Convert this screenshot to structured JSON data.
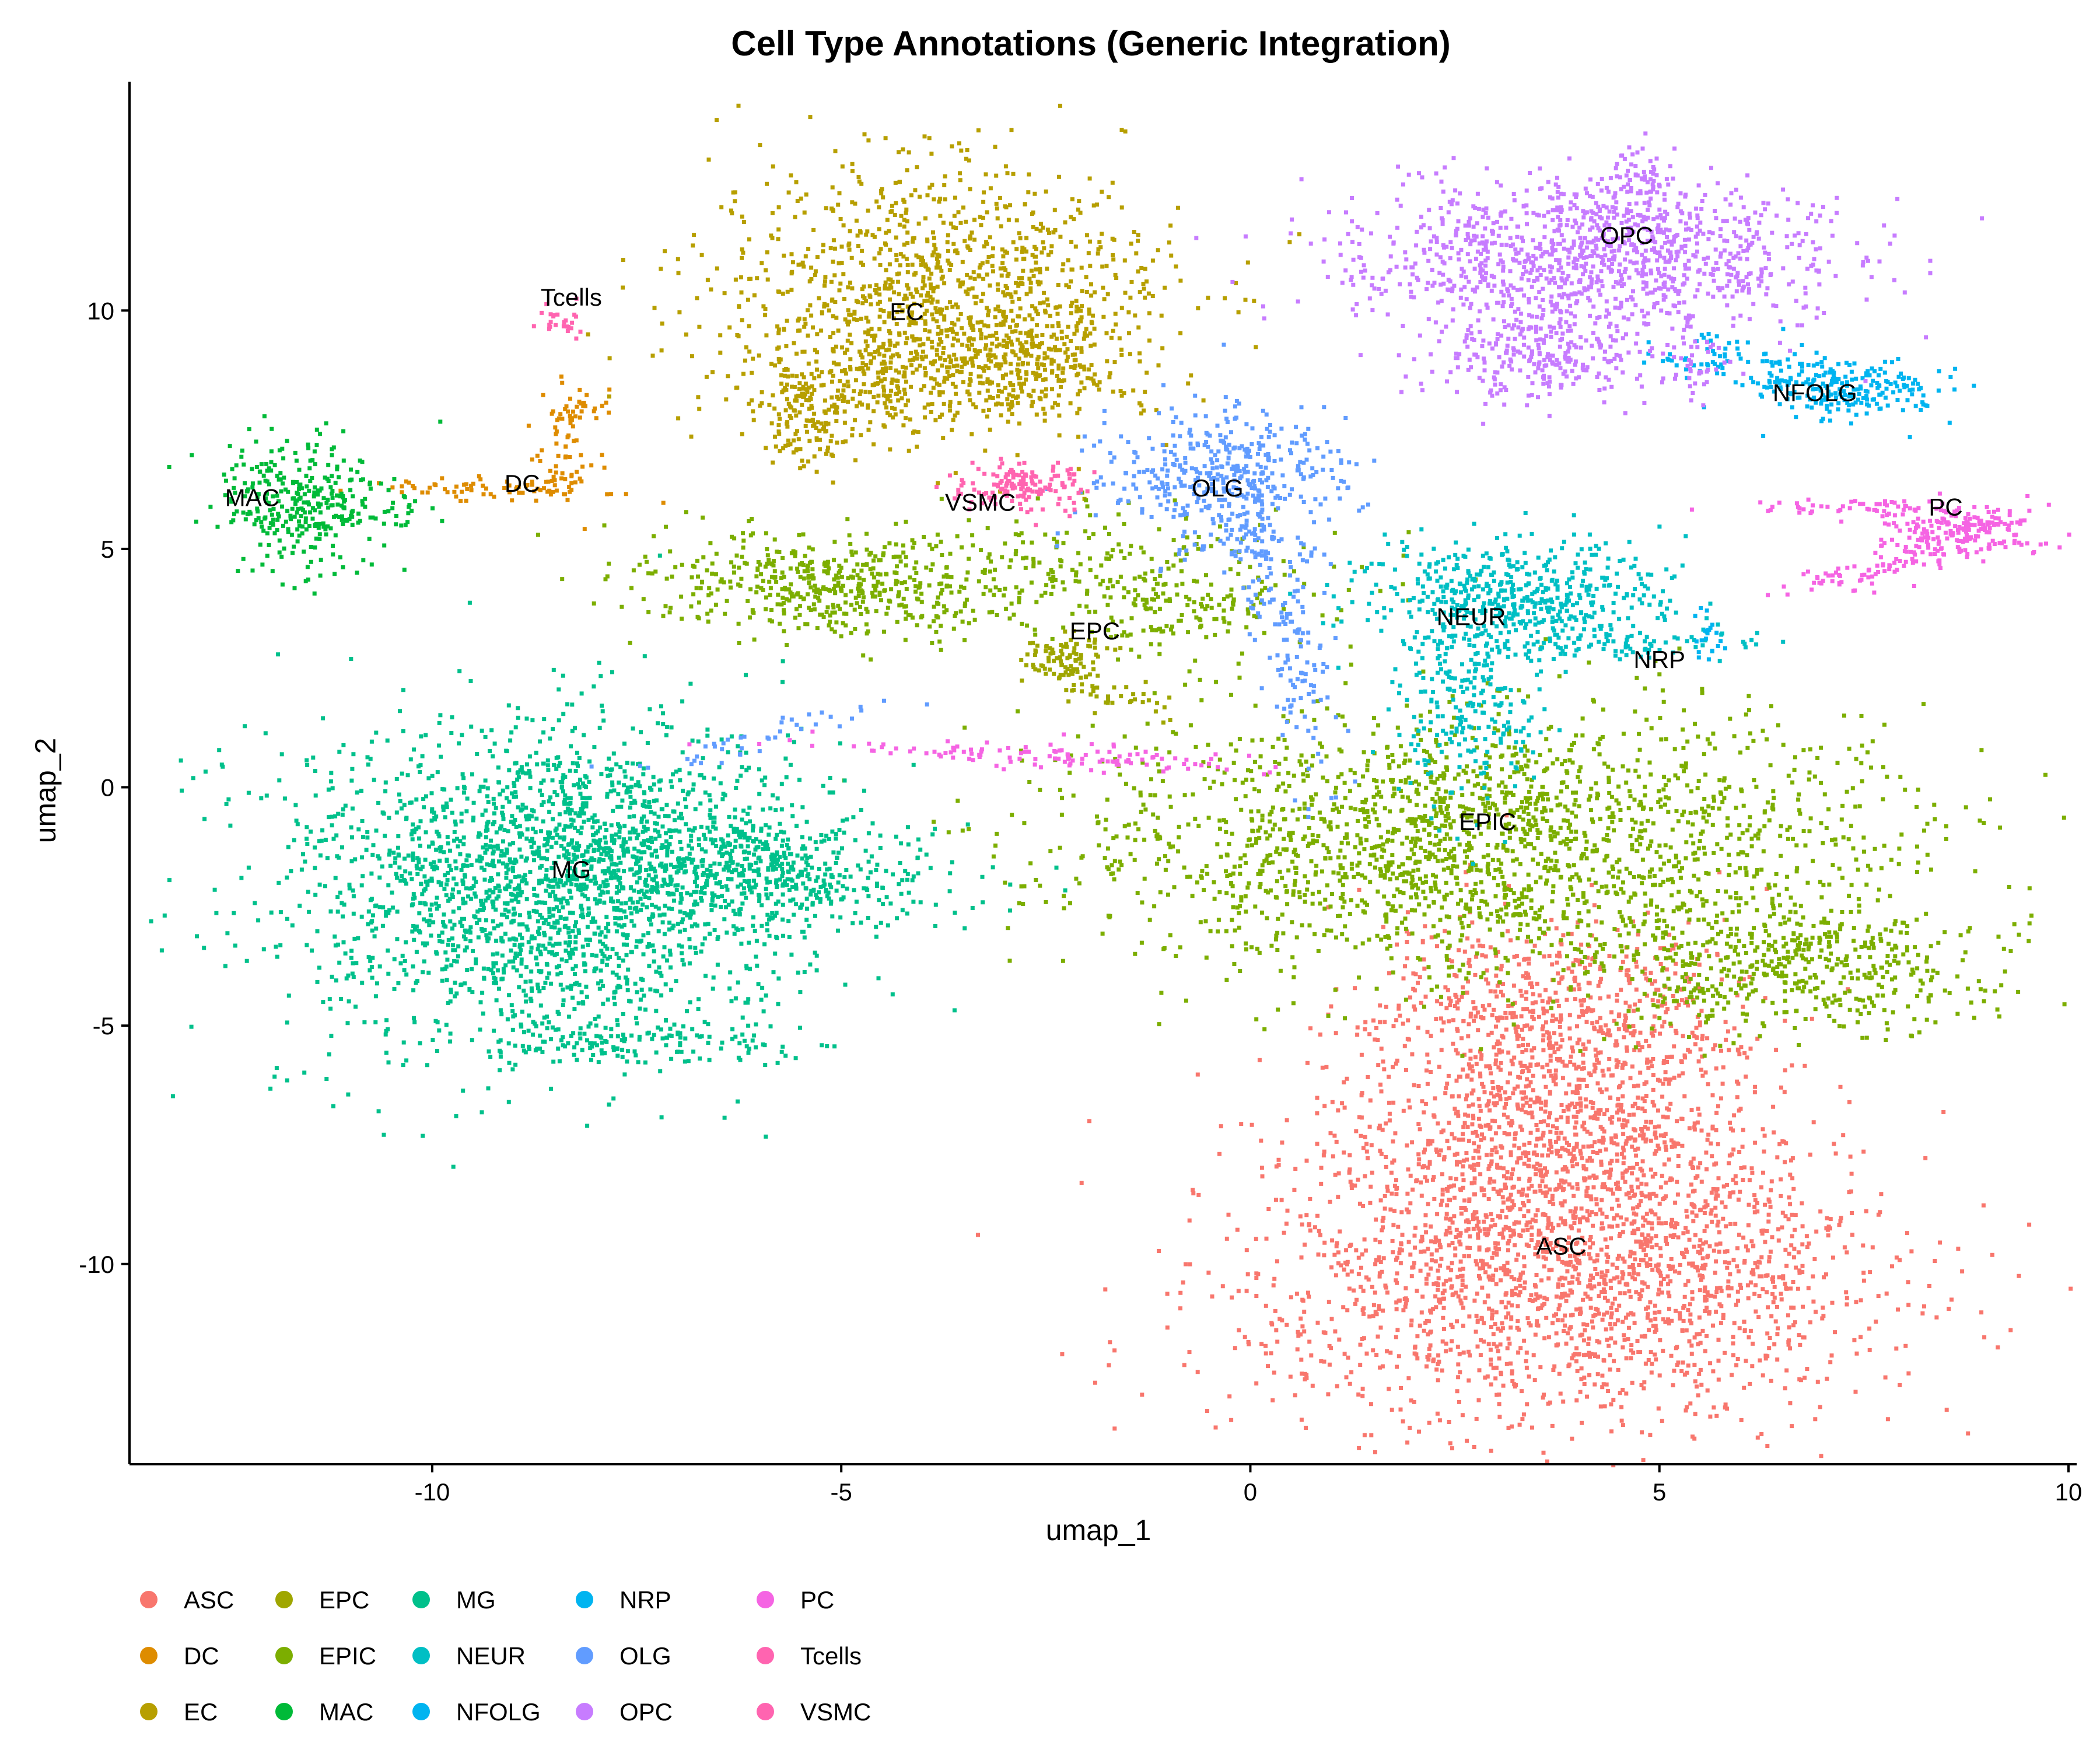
{
  "chart_data": {
    "type": "scatter",
    "title": "Cell Type Annotations (Generic Integration)",
    "xlabel": "umap_1",
    "ylabel": "umap_2",
    "xlim": [
      -13.7,
      10.1
    ],
    "ylim": [
      -14.2,
      14.8
    ],
    "xticks": [
      -10,
      -5,
      0,
      5,
      10
    ],
    "yticks": [
      -10,
      -5,
      0,
      5,
      10
    ],
    "grid": false,
    "legend_position": "bottom",
    "series": [
      {
        "name": "ASC",
        "color": "#F8766D",
        "label_pos": [
          3.8,
          -9.8
        ],
        "blobs": [
          [
            3.6,
            -10.4,
            2.0,
            1.5,
            0,
            1600
          ],
          [
            4.4,
            -7.2,
            1.1,
            2.0,
            0.4,
            900
          ],
          [
            3.0,
            -7.5,
            1.2,
            1.3,
            0,
            500
          ],
          [
            3.8,
            -4.5,
            1.2,
            0.9,
            0,
            400
          ]
        ]
      },
      {
        "name": "DC",
        "color": "#DE8C00",
        "label_pos": [
          -8.9,
          6.2
        ],
        "blobs": [
          [
            -9.3,
            6.3,
            0.7,
            0.12,
            0,
            70
          ],
          [
            -8.4,
            7.0,
            0.2,
            0.6,
            0,
            60
          ],
          [
            -8.2,
            8.0,
            0.2,
            0.2,
            0,
            25
          ]
        ]
      },
      {
        "name": "EC",
        "color": "#B79F00",
        "label_pos": [
          -4.2,
          9.8
        ],
        "blobs": [
          [
            -3.9,
            10.3,
            1.4,
            1.4,
            0,
            1100
          ],
          [
            -2.8,
            9.0,
            0.7,
            0.6,
            0,
            250
          ],
          [
            -5.4,
            7.7,
            0.3,
            0.5,
            0,
            120
          ],
          [
            -4.5,
            8.5,
            0.8,
            0.5,
            0,
            200
          ]
        ]
      },
      {
        "name": "EPC",
        "color": "#9FA600",
        "label_pos": [
          -1.9,
          3.1
        ],
        "blobs": [
          [
            -2.3,
            2.8,
            0.25,
            0.25,
            0,
            90
          ],
          [
            -1.8,
            2.0,
            0.5,
            0.15,
            -0.5,
            40
          ]
        ]
      },
      {
        "name": "EPIC",
        "color": "#7CAE00",
        "label_pos": [
          2.9,
          -0.9
        ],
        "blobs": [
          [
            2.8,
            -1.1,
            2.4,
            1.4,
            0,
            2000
          ],
          [
            6.6,
            -3.8,
            1.2,
            0.7,
            0,
            500
          ],
          [
            -5.1,
            4.3,
            1.2,
            0.5,
            -0.1,
            500
          ],
          [
            -1.0,
            3.8,
            0.6,
            0.5,
            0,
            120
          ],
          [
            -1.8,
            4.6,
            1.5,
            0.6,
            0,
            200
          ]
        ]
      },
      {
        "name": "MAC",
        "color": "#00BA38",
        "label_pos": [
          -12.2,
          5.9
        ],
        "blobs": [
          [
            -11.7,
            6.0,
            0.5,
            0.7,
            0,
            300
          ],
          [
            -10.8,
            5.9,
            0.5,
            0.2,
            0,
            40
          ]
        ]
      },
      {
        "name": "MG",
        "color": "#00C08B",
        "label_pos": [
          -8.3,
          -1.9
        ],
        "blobs": [
          [
            -8.6,
            -2.0,
            1.6,
            1.7,
            0,
            2000
          ],
          [
            -6.8,
            -1.4,
            1.5,
            0.8,
            -0.15,
            500
          ],
          [
            -7.6,
            -5.3,
            0.9,
            0.25,
            0,
            150
          ],
          [
            -5.8,
            -1.8,
            0.9,
            0.4,
            0,
            180
          ]
        ]
      },
      {
        "name": "NEUR",
        "color": "#00BFC4",
        "label_pos": [
          2.7,
          3.4
        ],
        "blobs": [
          [
            3.2,
            4.1,
            1.0,
            0.6,
            0,
            500
          ],
          [
            2.6,
            1.9,
            0.4,
            1.2,
            0,
            250
          ],
          [
            4.6,
            3.1,
            0.8,
            0.2,
            0,
            80
          ]
        ]
      },
      {
        "name": "NFOLG",
        "color": "#00B4F0",
        "label_pos": [
          6.9,
          8.1
        ],
        "blobs": [
          [
            7.2,
            8.4,
            0.6,
            0.3,
            0,
            200
          ],
          [
            6.2,
            8.9,
            0.7,
            0.3,
            -0.3,
            90
          ]
        ]
      },
      {
        "name": "NRP",
        "color": "#00B4F0",
        "label_pos": [
          5.0,
          2.5
        ],
        "blobs": [
          [
            5.6,
            3.3,
            0.1,
            0.3,
            0,
            20
          ]
        ]
      },
      {
        "name": "OLG",
        "color": "#619CFF",
        "label_pos": [
          -0.4,
          6.1
        ],
        "blobs": [
          [
            -0.3,
            6.6,
            0.8,
            0.7,
            0,
            400
          ],
          [
            0.4,
            3.5,
            0.25,
            1.5,
            0.15,
            150
          ],
          [
            -0.1,
            5.2,
            0.4,
            0.3,
            0,
            60
          ],
          [
            -5.8,
            1.2,
            0.9,
            0.15,
            0.45,
            40
          ]
        ]
      },
      {
        "name": "OPC",
        "color": "#C77CFF",
        "label_pos": [
          4.6,
          11.4
        ],
        "blobs": [
          [
            4.2,
            11.2,
            1.5,
            0.8,
            0,
            1100
          ],
          [
            3.5,
            9.1,
            0.7,
            0.5,
            0,
            250
          ],
          [
            4.7,
            12.8,
            0.2,
            0.4,
            0,
            60
          ],
          [
            5.4,
            9.0,
            0.2,
            0.5,
            0,
            40
          ]
        ]
      },
      {
        "name": "PC",
        "color": "#F564E3",
        "label_pos": [
          8.5,
          5.7
        ],
        "blobs": [
          [
            8.6,
            5.4,
            0.5,
            0.3,
            0,
            200
          ],
          [
            7.6,
            4.6,
            0.6,
            0.15,
            0.35,
            70
          ],
          [
            7.4,
            5.9,
            0.7,
            0.1,
            0,
            50
          ],
          [
            -2.5,
            0.7,
            1.4,
            0.12,
            -0.08,
            120
          ]
        ]
      },
      {
        "name": "Tcells",
        "color": "#FF64B0",
        "label_pos": [
          -8.3,
          10.1
        ],
        "blobs": [
          [
            -8.5,
            9.8,
            0.15,
            0.2,
            0,
            25
          ]
        ]
      },
      {
        "name": "VSMC",
        "color": "#FF64B0",
        "label_pos": [
          -3.3,
          5.8
        ],
        "blobs": [
          [
            -2.8,
            6.4,
            0.4,
            0.25,
            0,
            150
          ]
        ]
      }
    ]
  }
}
